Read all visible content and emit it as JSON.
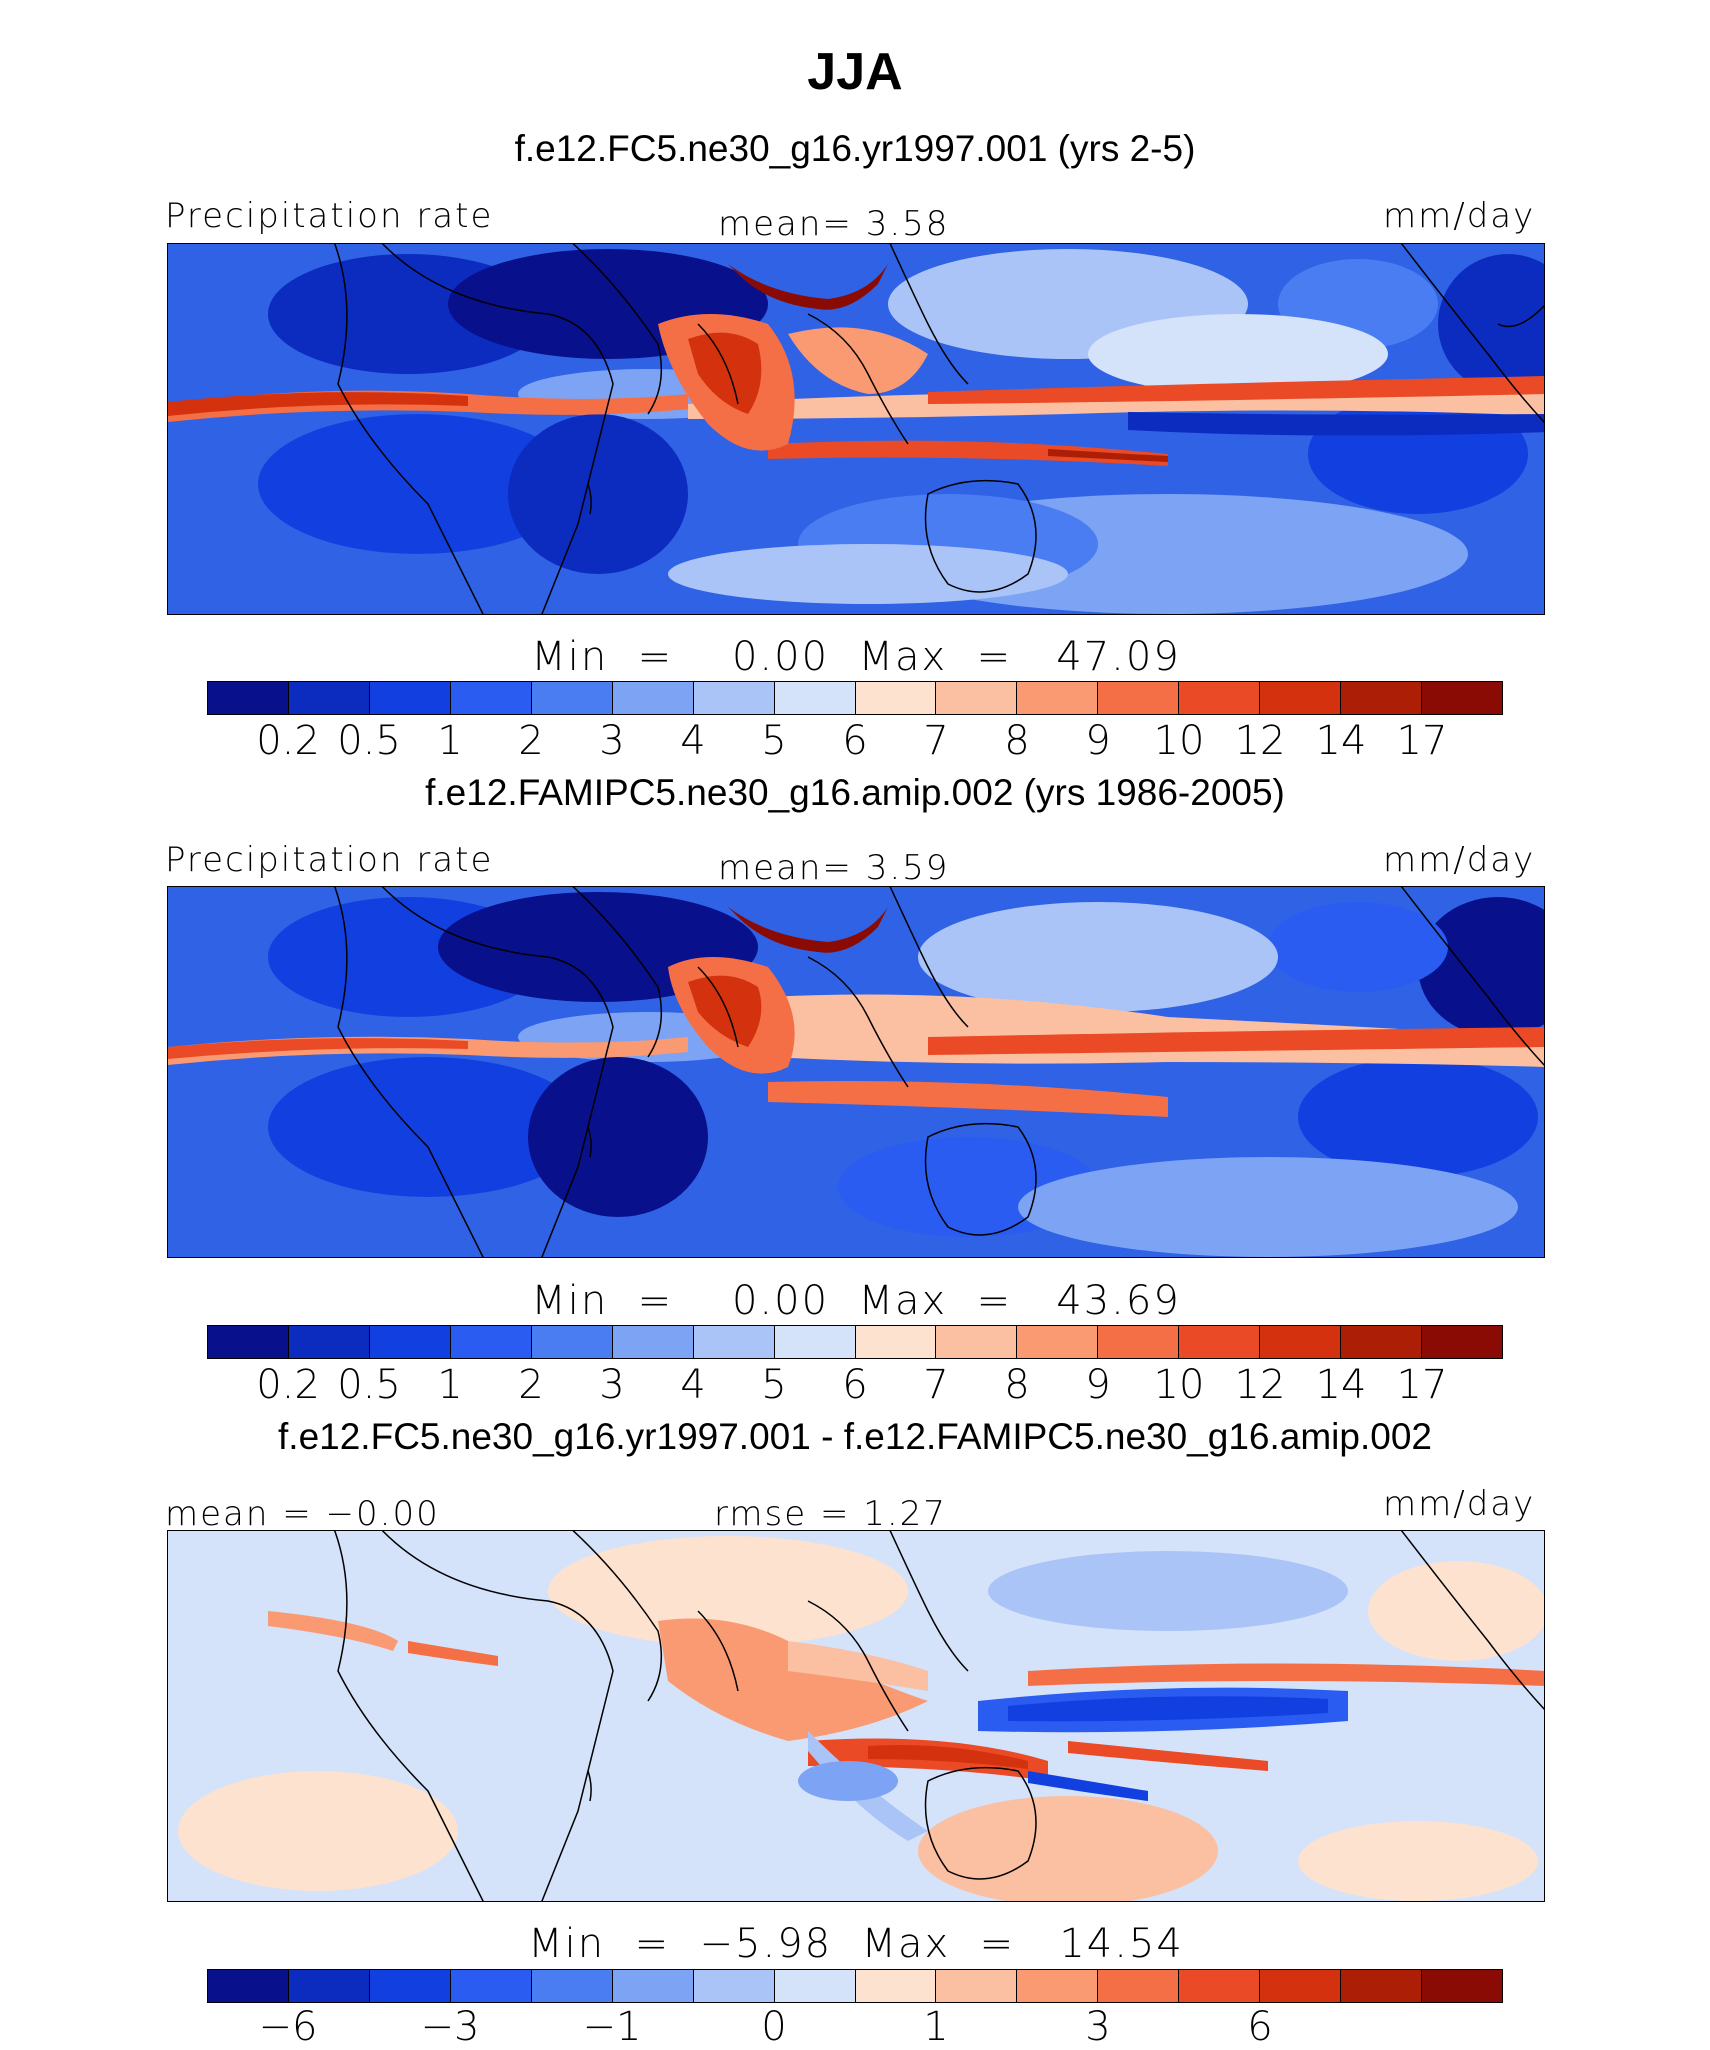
{
  "title": "JJA",
  "panels": [
    {
      "id": "model-panel",
      "subtitle": "f.e12.FC5.ne30_g16.yr1997.001 (yrs 2-5)",
      "left_label": "Precipitation rate",
      "center_label": "mean=   3.58",
      "right_label": "mm/day",
      "stats": "Min  =    0.00  Max  =   47.09",
      "colorbar": {
        "colors": [
          "#08108c",
          "#0c2bbf",
          "#1240e0",
          "#2a5cf2",
          "#4a7cf2",
          "#7da3f4",
          "#abc4f7",
          "#d4e2fa",
          "#fde3cf",
          "#fbbfa1",
          "#f99a72",
          "#f56f46",
          "#ea4a25",
          "#d4320f",
          "#ad1e07",
          "#8a0b04"
        ],
        "labels": [
          "0.2",
          "0.5",
          "1",
          "2",
          "3",
          "4",
          "5",
          "6",
          "7",
          "8",
          "9",
          "10",
          "12",
          "14",
          "17"
        ]
      }
    },
    {
      "id": "obs-panel",
      "subtitle": "f.e12.FAMIPC5.ne30_g16.amip.002 (yrs 1986-2005)",
      "left_label": "Precipitation rate",
      "center_label": "mean=   3.59",
      "right_label": "mm/day",
      "stats": "Min  =    0.00  Max  =   43.69",
      "colorbar": {
        "colors": [
          "#08108c",
          "#0c2bbf",
          "#1240e0",
          "#2a5cf2",
          "#4a7cf2",
          "#7da3f4",
          "#abc4f7",
          "#d4e2fa",
          "#fde3cf",
          "#fbbfa1",
          "#f99a72",
          "#f56f46",
          "#ea4a25",
          "#d4320f",
          "#ad1e07",
          "#8a0b04"
        ],
        "labels": [
          "0.2",
          "0.5",
          "1",
          "2",
          "3",
          "4",
          "5",
          "6",
          "7",
          "8",
          "9",
          "10",
          "12",
          "14",
          "17"
        ]
      }
    },
    {
      "id": "diff-panel",
      "subtitle": "f.e12.FC5.ne30_g16.yr1997.001 - f.e12.FAMIPC5.ne30_g16.amip.002",
      "left_label": "mean =  −0.00",
      "center_label": "rmse =   1.27",
      "right_label": "mm/day",
      "stats": "Min  =  −5.98  Max  =   14.54",
      "colorbar": {
        "colors": [
          "#08108c",
          "#0c2bbf",
          "#1240e0",
          "#2a5cf2",
          "#4a7cf2",
          "#7da3f4",
          "#abc4f7",
          "#d4e2fa",
          "#fde3cf",
          "#fbbfa1",
          "#f99a72",
          "#f56f46",
          "#ea4a25",
          "#d4320f",
          "#ad1e07",
          "#8a0b04"
        ],
        "labels": [
          "−6",
          "−3",
          "−1",
          "0",
          "1",
          "3",
          "6"
        ]
      }
    }
  ],
  "map_colors": {
    "dry_dark": "#0a1a9a",
    "dry": "#2c5fe6",
    "moderate": "#6f97f2",
    "light": "#cfdff9",
    "neutral_warm": "#fde3cf",
    "wet": "#f5804f",
    "very_wet": "#d63010",
    "extreme": "#8a0b04"
  }
}
